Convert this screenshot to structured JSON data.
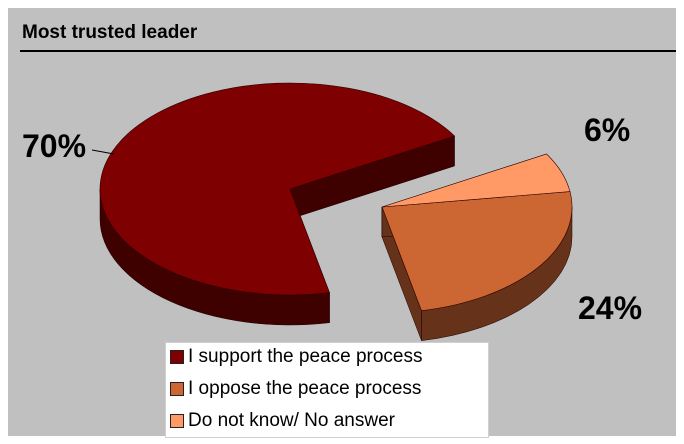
{
  "chart_data": {
    "type": "pie",
    "title": "Most trusted leader",
    "slices": [
      {
        "label": "I support the peace process",
        "value": 70,
        "display": "70%",
        "color": "#7f0000",
        "side_color": "#3f0000"
      },
      {
        "label": "I oppose the peace process",
        "value": 24,
        "display": "24%",
        "color": "#cc6633",
        "side_color": "#66331a"
      },
      {
        "label": "Do not know/ No answer",
        "value": 6,
        "display": "6%",
        "color": "#ff9966",
        "side_color": "#80503a"
      }
    ],
    "style": "3d-exploded",
    "legend_position": "bottom"
  }
}
